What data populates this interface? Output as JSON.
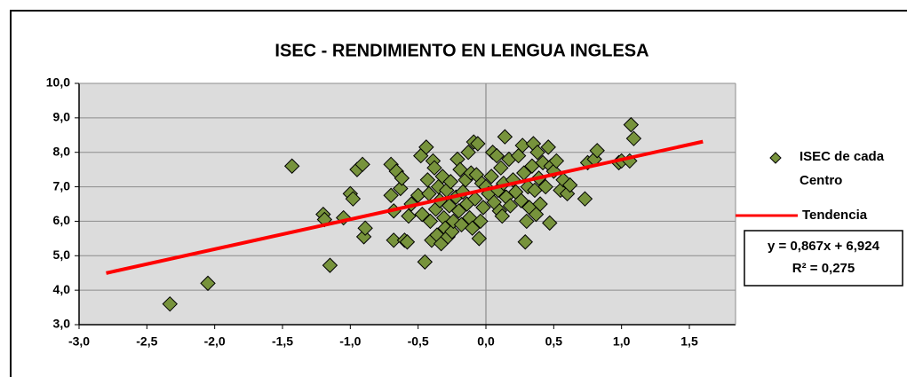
{
  "chart_data": {
    "type": "scatter",
    "title": "ISEC - RENDIMIENTO EN LENGUA INGLESA",
    "xlim": [
      -3,
      1.85
    ],
    "ylim": [
      3,
      10
    ],
    "xticks": [
      {
        "value": -3,
        "label": "-3,0"
      },
      {
        "value": -2.5,
        "label": "-2,5"
      },
      {
        "value": -2,
        "label": "-2,0"
      },
      {
        "value": -1.5,
        "label": "-1,5"
      },
      {
        "value": -1,
        "label": "-1,0"
      },
      {
        "value": -0.5,
        "label": "-0,5"
      },
      {
        "value": 0,
        "label": "0,0"
      },
      {
        "value": 0.5,
        "label": "0,5"
      },
      {
        "value": 1,
        "label": "1,0"
      },
      {
        "value": 1.5,
        "label": "1,5"
      }
    ],
    "yticks": [
      {
        "value": 3,
        "label": "3,0"
      },
      {
        "value": 4,
        "label": "4,0"
      },
      {
        "value": 5,
        "label": "5,0"
      },
      {
        "value": 6,
        "label": "6,0"
      },
      {
        "value": 7,
        "label": "7,0"
      },
      {
        "value": 8,
        "label": "8,0"
      },
      {
        "value": 9,
        "label": "9,0"
      },
      {
        "value": 10,
        "label": "10,0"
      }
    ],
    "grid": true,
    "legend": "right",
    "series": [
      {
        "name": "ISEC de cada Centro",
        "color": "#77933c",
        "x": [
          -2.33,
          -2.05,
          -1.43,
          -1.2,
          -1.19,
          -1.15,
          -1.05,
          -1.0,
          -0.98,
          -0.95,
          -0.91,
          -0.9,
          -0.89,
          -0.7,
          -0.7,
          -0.68,
          -0.68,
          -0.66,
          -0.63,
          -0.62,
          -0.6,
          -0.58,
          -0.57,
          -0.55,
          -0.5,
          -0.48,
          -0.47,
          -0.45,
          -0.44,
          -0.43,
          -0.42,
          -0.41,
          -0.4,
          -0.39,
          -0.38,
          -0.37,
          -0.36,
          -0.35,
          -0.34,
          -0.33,
          -0.32,
          -0.31,
          -0.3,
          -0.29,
          -0.28,
          -0.27,
          -0.26,
          -0.25,
          -0.24,
          -0.22,
          -0.21,
          -0.2,
          -0.19,
          -0.18,
          -0.17,
          -0.15,
          -0.14,
          -0.13,
          -0.12,
          -0.11,
          -0.1,
          -0.09,
          -0.08,
          -0.07,
          -0.06,
          -0.05,
          -0.04,
          -0.03,
          -0.02,
          0.0,
          0.02,
          0.04,
          0.05,
          0.06,
          0.08,
          0.09,
          0.1,
          0.11,
          0.12,
          0.13,
          0.14,
          0.15,
          0.17,
          0.18,
          0.2,
          0.22,
          0.24,
          0.26,
          0.27,
          0.28,
          0.29,
          0.3,
          0.31,
          0.32,
          0.34,
          0.35,
          0.36,
          0.37,
          0.38,
          0.39,
          0.4,
          0.42,
          0.44,
          0.46,
          0.47,
          0.48,
          0.5,
          0.52,
          0.55,
          0.57,
          0.6,
          0.62,
          0.73,
          0.75,
          0.8,
          0.82,
          0.98,
          1.0,
          1.06,
          1.07,
          1.09
        ],
        "values": [
          3.6,
          4.2,
          7.6,
          6.2,
          6.05,
          4.72,
          6.1,
          6.8,
          6.65,
          7.5,
          7.65,
          5.55,
          5.8,
          7.65,
          6.75,
          6.3,
          5.45,
          7.45,
          6.95,
          7.25,
          5.45,
          5.4,
          6.15,
          6.5,
          6.75,
          7.9,
          6.2,
          4.82,
          8.15,
          7.2,
          6.8,
          6.0,
          5.45,
          7.75,
          7.55,
          6.35,
          5.6,
          7.0,
          6.6,
          5.35,
          7.3,
          6.1,
          5.8,
          6.9,
          5.55,
          6.45,
          7.15,
          5.7,
          6.0,
          6.7,
          7.8,
          6.3,
          7.5,
          5.9,
          6.85,
          7.2,
          6.5,
          8.0,
          6.1,
          7.4,
          5.8,
          8.3,
          6.65,
          7.35,
          8.25,
          5.5,
          6.0,
          7.1,
          6.4,
          7.0,
          6.8,
          7.3,
          8.0,
          6.55,
          7.9,
          6.9,
          6.3,
          7.55,
          6.15,
          7.1,
          8.45,
          6.7,
          7.8,
          6.45,
          7.2,
          6.85,
          7.9,
          6.6,
          8.2,
          7.4,
          5.4,
          6.0,
          7.0,
          6.4,
          7.6,
          8.25,
          6.9,
          6.2,
          8.0,
          7.25,
          6.5,
          7.7,
          7.0,
          8.15,
          5.95,
          7.6,
          7.45,
          7.75,
          6.9,
          7.2,
          6.8,
          7.05,
          6.65,
          7.7,
          7.8,
          8.05,
          7.7,
          7.75,
          7.75,
          8.8,
          8.4
        ]
      },
      {
        "name": "Tendencia",
        "color": "#ff0000",
        "x": [
          -2.8,
          1.6
        ],
        "values": [
          4.496,
          8.311
        ]
      }
    ],
    "annotations": [
      "y = 0,867x + 6,924",
      "R² = 0,275"
    ]
  }
}
